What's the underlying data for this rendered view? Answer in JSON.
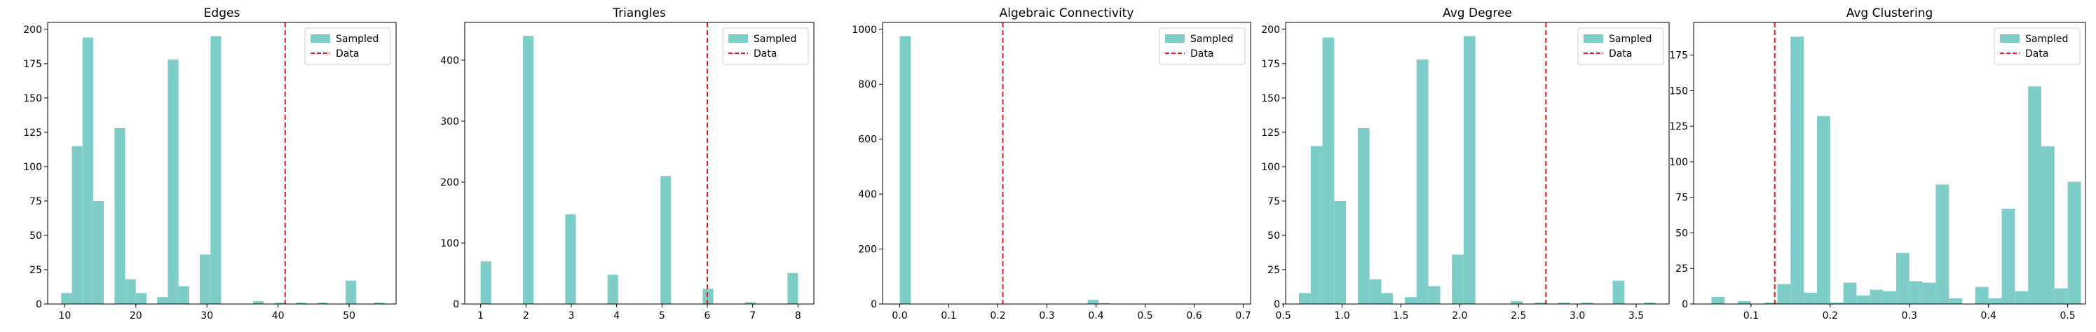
{
  "chart_data": [
    {
      "type": "histogram",
      "title": "Edges",
      "xlim": [
        7.6,
        56.6
      ],
      "ylim": [
        0,
        205
      ],
      "xticks": [
        10,
        20,
        30,
        40,
        50
      ],
      "yticks": [
        0,
        25,
        50,
        75,
        100,
        125,
        150,
        175,
        200
      ],
      "bins": [
        {
          "x0": 9.5,
          "x1": 11.0,
          "count": 8
        },
        {
          "x0": 11.0,
          "x1": 12.5,
          "count": 115
        },
        {
          "x0": 12.5,
          "x1": 14.0,
          "count": 194
        },
        {
          "x0": 14.0,
          "x1": 15.5,
          "count": 75
        },
        {
          "x0": 15.5,
          "x1": 17.0,
          "count": 0
        },
        {
          "x0": 17.0,
          "x1": 18.5,
          "count": 128
        },
        {
          "x0": 18.5,
          "x1": 20.0,
          "count": 18
        },
        {
          "x0": 20.0,
          "x1": 21.5,
          "count": 8
        },
        {
          "x0": 23.0,
          "x1": 24.5,
          "count": 5
        },
        {
          "x0": 24.5,
          "x1": 26.0,
          "count": 178
        },
        {
          "x0": 26.0,
          "x1": 27.5,
          "count": 13
        },
        {
          "x0": 29.0,
          "x1": 30.5,
          "count": 36
        },
        {
          "x0": 30.5,
          "x1": 32.0,
          "count": 195
        },
        {
          "x0": 36.5,
          "x1": 38.0,
          "count": 2
        },
        {
          "x0": 39.5,
          "x1": 41.0,
          "count": 1
        },
        {
          "x0": 42.5,
          "x1": 44.0,
          "count": 1
        },
        {
          "x0": 45.5,
          "x1": 47.0,
          "count": 1
        },
        {
          "x0": 49.5,
          "x1": 51.0,
          "count": 17
        },
        {
          "x0": 53.5,
          "x1": 55.0,
          "count": 1
        }
      ],
      "data_line": 41,
      "legend": [
        "Sampled",
        "Data"
      ],
      "legend_loc": "upper right"
    },
    {
      "type": "histogram",
      "title": "Triangles",
      "xlim": [
        0.65,
        8.35
      ],
      "ylim": [
        0,
        462
      ],
      "xticks": [
        1,
        2,
        3,
        4,
        5,
        6,
        7,
        8
      ],
      "yticks": [
        0,
        100,
        200,
        300,
        400
      ],
      "bins": [
        {
          "x0": 1.0,
          "x1": 1.233,
          "count": 70
        },
        {
          "x0": 1.933,
          "x1": 2.167,
          "count": 440
        },
        {
          "x0": 2.867,
          "x1": 3.1,
          "count": 147
        },
        {
          "x0": 3.8,
          "x1": 4.033,
          "count": 48
        },
        {
          "x0": 4.967,
          "x1": 5.2,
          "count": 210
        },
        {
          "x0": 5.9,
          "x1": 6.133,
          "count": 25
        },
        {
          "x0": 6.833,
          "x1": 7.067,
          "count": 3
        },
        {
          "x0": 7.767,
          "x1": 8.0,
          "count": 51
        }
      ],
      "data_line": 6,
      "legend": [
        "Sampled",
        "Data"
      ],
      "legend_loc": "upper right"
    },
    {
      "type": "histogram",
      "title": "Algebraic Connectivity",
      "xlim": [
        -0.035,
        0.715
      ],
      "ylim": [
        0,
        1025
      ],
      "xticks": [
        0.0,
        0.1,
        0.2,
        0.3,
        0.4,
        0.5,
        0.6,
        0.7
      ],
      "xtick_labels": [
        "0.0",
        "0.1",
        "0.2",
        "0.3",
        "0.4",
        "0.5",
        "0.6",
        "0.7"
      ],
      "yticks": [
        0,
        200,
        400,
        600,
        800,
        1000
      ],
      "bins": [
        {
          "x0": 0.0,
          "x1": 0.0225,
          "count": 975
        },
        {
          "x0": 0.383,
          "x1": 0.405,
          "count": 15
        },
        {
          "x0": 0.405,
          "x1": 0.428,
          "count": 3
        }
      ],
      "data_line": 0.21,
      "legend": [
        "Sampled",
        "Data"
      ],
      "legend_loc": "upper right"
    },
    {
      "type": "histogram",
      "title": "Avg Degree",
      "xlim": [
        0.52,
        3.78
      ],
      "ylim": [
        0,
        205
      ],
      "xticks": [
        0.5,
        1.0,
        1.5,
        2.0,
        2.5,
        3.0,
        3.5
      ],
      "xtick_labels": [
        "0.5",
        "1.0",
        "1.5",
        "2.0",
        "2.5",
        "3.0",
        "3.5"
      ],
      "yticks": [
        0,
        25,
        50,
        75,
        100,
        125,
        150,
        175,
        200
      ],
      "bins": [
        {
          "x0": 0.6333,
          "x1": 0.7333,
          "count": 8
        },
        {
          "x0": 0.7333,
          "x1": 0.8333,
          "count": 115
        },
        {
          "x0": 0.8333,
          "x1": 0.9333,
          "count": 194
        },
        {
          "x0": 0.9333,
          "x1": 1.0333,
          "count": 75
        },
        {
          "x0": 1.1333,
          "x1": 1.2333,
          "count": 128
        },
        {
          "x0": 1.2333,
          "x1": 1.3333,
          "count": 18
        },
        {
          "x0": 1.3333,
          "x1": 1.4333,
          "count": 8
        },
        {
          "x0": 1.5333,
          "x1": 1.6333,
          "count": 5
        },
        {
          "x0": 1.6333,
          "x1": 1.7333,
          "count": 178
        },
        {
          "x0": 1.7333,
          "x1": 1.8333,
          "count": 13
        },
        {
          "x0": 1.9333,
          "x1": 2.0333,
          "count": 36
        },
        {
          "x0": 2.0333,
          "x1": 2.1333,
          "count": 195
        },
        {
          "x0": 2.4333,
          "x1": 2.5333,
          "count": 2
        },
        {
          "x0": 2.6333,
          "x1": 2.7333,
          "count": 1
        },
        {
          "x0": 2.8333,
          "x1": 2.9333,
          "count": 1
        },
        {
          "x0": 3.0333,
          "x1": 3.1333,
          "count": 1
        },
        {
          "x0": 3.3,
          "x1": 3.4,
          "count": 17
        },
        {
          "x0": 3.5667,
          "x1": 3.6667,
          "count": 1
        }
      ],
      "data_line": 2.733,
      "legend": [
        "Sampled",
        "Data"
      ],
      "legend_loc": "upper right"
    },
    {
      "type": "histogram",
      "title": "Avg Clustering",
      "xlim": [
        0.0275,
        0.5225
      ],
      "ylim": [
        0,
        198
      ],
      "xticks": [
        0.1,
        0.2,
        0.3,
        0.4,
        0.5
      ],
      "xtick_labels": [
        "0.1",
        "0.2",
        "0.3",
        "0.4",
        "0.5"
      ],
      "yticks": [
        0,
        25,
        50,
        75,
        100,
        125,
        150,
        175
      ],
      "bins": [
        {
          "x0": 0.05,
          "x1": 0.0667,
          "count": 5
        },
        {
          "x0": 0.0667,
          "x1": 0.0833,
          "count": 0
        },
        {
          "x0": 0.0833,
          "x1": 0.1,
          "count": 2
        },
        {
          "x0": 0.1,
          "x1": 0.1167,
          "count": 0
        },
        {
          "x0": 0.1167,
          "x1": 0.1333,
          "count": 1
        },
        {
          "x0": 0.1333,
          "x1": 0.15,
          "count": 14
        },
        {
          "x0": 0.15,
          "x1": 0.1667,
          "count": 188
        },
        {
          "x0": 0.1667,
          "x1": 0.1833,
          "count": 8
        },
        {
          "x0": 0.1833,
          "x1": 0.2,
          "count": 132
        },
        {
          "x0": 0.2,
          "x1": 0.2167,
          "count": 1
        },
        {
          "x0": 0.2167,
          "x1": 0.2333,
          "count": 15
        },
        {
          "x0": 0.2333,
          "x1": 0.25,
          "count": 6
        },
        {
          "x0": 0.25,
          "x1": 0.2667,
          "count": 10
        },
        {
          "x0": 0.2667,
          "x1": 0.2833,
          "count": 9
        },
        {
          "x0": 0.2833,
          "x1": 0.3,
          "count": 36
        },
        {
          "x0": 0.3,
          "x1": 0.3167,
          "count": 16
        },
        {
          "x0": 0.3167,
          "x1": 0.3333,
          "count": 15
        },
        {
          "x0": 0.3333,
          "x1": 0.35,
          "count": 84
        },
        {
          "x0": 0.35,
          "x1": 0.3667,
          "count": 4
        },
        {
          "x0": 0.3667,
          "x1": 0.3833,
          "count": 0
        },
        {
          "x0": 0.3833,
          "x1": 0.4,
          "count": 12
        },
        {
          "x0": 0.4,
          "x1": 0.4167,
          "count": 4
        },
        {
          "x0": 0.4167,
          "x1": 0.4333,
          "count": 67
        },
        {
          "x0": 0.4333,
          "x1": 0.45,
          "count": 9
        },
        {
          "x0": 0.45,
          "x1": 0.4667,
          "count": 153
        },
        {
          "x0": 0.4667,
          "x1": 0.4833,
          "count": 111
        },
        {
          "x0": 0.4833,
          "x1": 0.5,
          "count": 11
        },
        {
          "x0": 0.5,
          "x1": 0.5167,
          "count": 86
        }
      ],
      "data_line": 0.13,
      "legend": [
        "Sampled",
        "Data"
      ],
      "legend_loc": "upper right"
    }
  ],
  "colors": {
    "sampled": "#7fcdc9",
    "data_line": "#e41a1c",
    "axis": "#000000",
    "legend_border": "#cccccc"
  }
}
